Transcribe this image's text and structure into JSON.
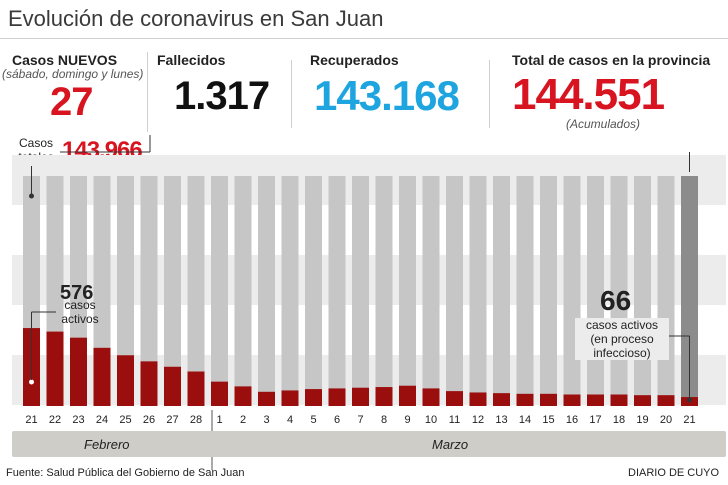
{
  "title": "Evolución de coronavirus en San Juan",
  "stats": {
    "nuevos_label": "Casos NUEVOS",
    "nuevos_sub": "(sábado, domingo y lunes)",
    "nuevos_value": "27",
    "fallecidos_label": "Fallecidos",
    "fallecidos_value": "1.317",
    "recuperados_label": "Recuperados",
    "recuperados_value": "143.168",
    "total_label": "Total de casos en la provincia",
    "total_value": "144.551",
    "total_sub": "(Acumulados)"
  },
  "casos_totales_label_1": "Casos",
  "casos_totales_label_2": "totales",
  "casos_totales_value": "143.966",
  "annotation_start": {
    "value": "576",
    "line1": "casos",
    "line2": "activos"
  },
  "annotation_end": {
    "value": "66",
    "line1": "casos activos",
    "line2": "(en proceso",
    "line3": "infeccioso)"
  },
  "months": {
    "feb": "Febrero",
    "mar": "Marzo"
  },
  "footer": {
    "source": "Fuente: Salud Pública del Gobierno de San Juan",
    "brand": "DIARIO DE CUYO"
  },
  "colors": {
    "red": "#d7141f",
    "dark_red": "#9b0e0e",
    "blue": "#1ea5e0",
    "gray_bar": "#c6c6c6",
    "band": "#ececec",
    "month_bar": "#cfcdc7",
    "highlight_bar": "#8c8c8c"
  },
  "chart_data": {
    "type": "bar",
    "categories": [
      "21",
      "22",
      "23",
      "24",
      "25",
      "26",
      "27",
      "28",
      "1",
      "2",
      "3",
      "4",
      "5",
      "6",
      "7",
      "8",
      "9",
      "10",
      "11",
      "12",
      "13",
      "14",
      "15",
      "16",
      "17",
      "18",
      "19",
      "20",
      "21"
    ],
    "series": [
      {
        "name": "casos activos",
        "values": [
          576,
          550,
          505,
          430,
          375,
          330,
          290,
          255,
          180,
          145,
          105,
          115,
          125,
          130,
          135,
          140,
          150,
          130,
          110,
          100,
          95,
          90,
          90,
          85,
          85,
          85,
          80,
          80,
          66
        ]
      }
    ],
    "total_cases": 143966,
    "ylim": [
      0,
      1700
    ]
  }
}
